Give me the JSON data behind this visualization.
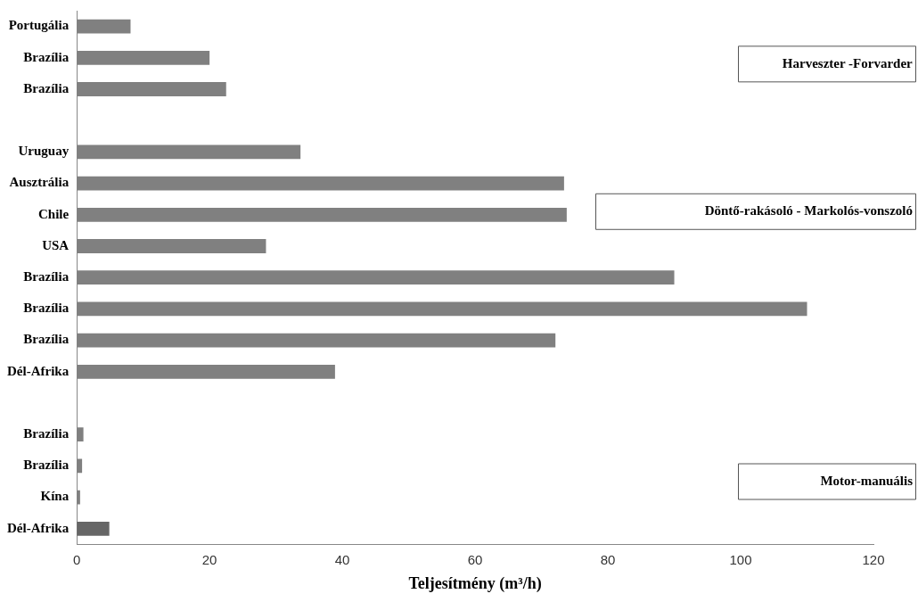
{
  "chart_data": {
    "type": "bar",
    "orientation": "horizontal",
    "xlabel": "Teljesítmény (m³/h)",
    "categories": [
      "Portugália",
      "Brazília",
      "Brazília",
      null,
      "Uruguay",
      "Ausztrália",
      "Chile",
      "USA",
      "Brazília",
      "Brazília",
      "Brazília",
      "Dél-Afrika",
      null,
      "Brazília",
      "Brazília",
      "Kína",
      "Dél-Afrika"
    ],
    "values": [
      8.1,
      20,
      22.5,
      null,
      33.7,
      73.4,
      73.8,
      28.5,
      90,
      110,
      72.1,
      38.9,
      null,
      1,
      0.8,
      0.5,
      4.9
    ],
    "colors": [
      "#808080",
      "#808080",
      "#808080",
      "#808080",
      "#808080",
      "#808080",
      "#808080",
      "#808080",
      "#808080",
      "#808080",
      "#808080",
      "#808080",
      "#808080",
      "#808080",
      "#808080",
      "#808080",
      "#666666"
    ],
    "xlim": [
      0,
      120
    ],
    "xticks": [
      0,
      20,
      40,
      60,
      80,
      100,
      120
    ],
    "grid": false,
    "legend": false,
    "annotations": [
      "Harveszter -Forvarder",
      "Döntő-rakásoló - Markolós-vonszoló",
      "Motor-manuális"
    ]
  }
}
